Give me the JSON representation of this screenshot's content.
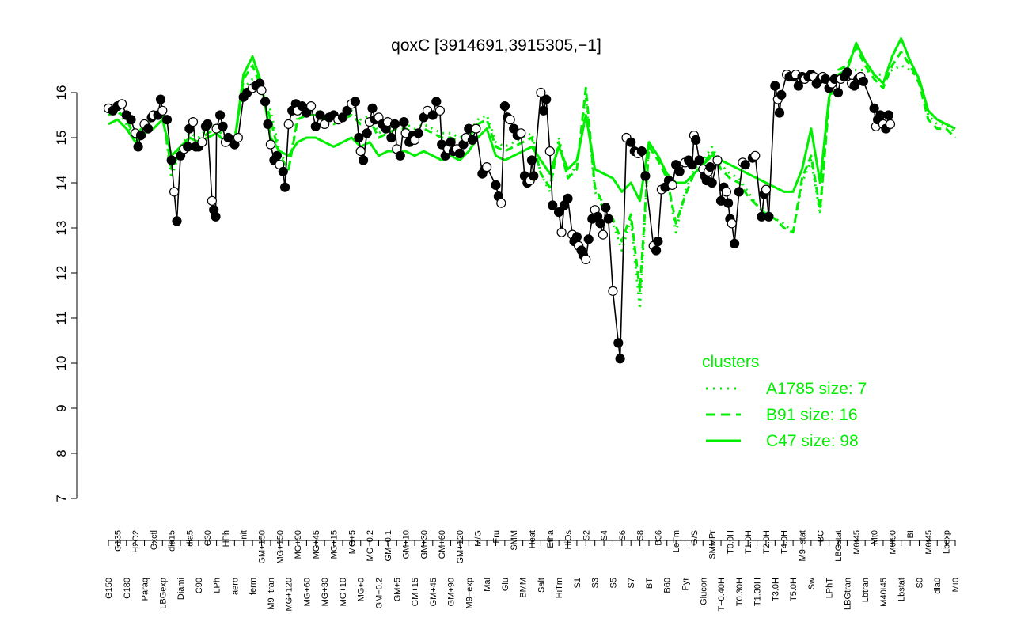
{
  "chart_data": {
    "type": "line",
    "title": "qoxC [3914691,3915305,−1]",
    "xlabel": "",
    "ylabel": "",
    "ylim": [
      7,
      16.5
    ],
    "yticks": [
      7,
      8,
      9,
      10,
      11,
      12,
      13,
      14,
      15,
      16
    ],
    "grid": false,
    "axis_labels_top": [
      "G150",
      "G135",
      "G180",
      "H2O2",
      "Paraq",
      "Oxctl",
      "LBGexp",
      "dia15",
      "Diami",
      "dia5",
      "C90",
      "C30",
      "LPh",
      "HPh",
      "aero",
      "nit",
      "ferm",
      "GM+150",
      "M9−tran",
      "MG+150",
      "MG+120",
      "MG+90",
      "MG+60",
      "MG+45",
      "MG+30",
      "MG+15",
      "MG+10",
      "MG+5",
      "MG+0",
      "MG−0.2",
      "GM−0.2",
      "GM−0.1",
      "GM+5",
      "GM+10",
      "GM+15",
      "GM+30",
      "GM+45",
      "GM+60",
      "GM+90",
      "GM+120",
      "M9−exp",
      "M/G",
      "Mal",
      "Fru",
      "Glu",
      "SMM",
      "BMM",
      "Heat",
      "Salt",
      "Etha",
      "HiTm",
      "HiOs",
      "S1",
      "S2",
      "S3",
      "S4",
      "S5",
      "S6",
      "S7",
      "S8",
      "BT",
      "B36",
      "B60",
      "LoTm",
      "Pyr",
      "G/S",
      "Glucon",
      "SMMPr",
      "T−0.40H",
      "T0.0H",
      "T0.30H",
      "T1.0H",
      "T1.30H",
      "T2.0H",
      "T3.0H",
      "T4.0H",
      "T5.0H",
      "M9−stat",
      "Sw",
      "BC",
      "LPhT",
      "LBGstat",
      "LBGtran",
      "M0t45",
      "Lbtran",
      "Mt0",
      "M40t45",
      "M0t90",
      "Lbstat",
      "BI",
      "S0",
      "M0t45",
      "dia0",
      "Lbexp",
      "Mt0"
    ],
    "series": [
      {
        "name": "A1785 size: 7",
        "style": "dotted",
        "values": [
          15.5,
          15.6,
          15.3,
          15.0,
          15.3,
          15.4,
          15.6,
          14.1,
          14.8,
          15.1,
          15.0,
          15.2,
          15.3,
          15.1,
          15.0,
          16.1,
          16.3,
          16.2,
          15.6,
          14.7,
          14.3,
          15.5,
          15.6,
          15.6,
          15.5,
          15.4,
          15.5,
          15.6,
          15.4,
          15.5,
          15.1,
          15.2,
          15.3,
          15.3,
          15.2,
          15.3,
          15.2,
          15.1,
          15.1,
          15.0,
          15.1,
          15.4,
          15.5,
          14.9,
          14.8,
          14.9,
          15.0,
          15.1,
          14.2,
          13.8,
          15.0,
          14.1,
          14.4,
          15.9,
          13.8,
          13.4,
          13.1,
          12.5,
          13.2,
          11.2,
          14.9,
          14.6,
          14.2,
          12.9,
          13.8,
          14.3,
          14.5,
          14.8,
          14.4,
          14.2,
          14.1,
          13.8,
          13.5,
          13.4,
          13.2,
          13.1,
          12.9,
          14.0,
          14.5,
          13.3,
          15.9,
          16.4,
          16.5,
          16.5,
          16.5,
          16.4,
          16.4,
          16.5,
          16.6,
          16.5,
          16.3,
          15.5,
          15.3,
          15.3,
          15.1
        ]
      },
      {
        "name": "B91 size: 16",
        "style": "dashed",
        "values": [
          15.5,
          15.6,
          15.4,
          15.0,
          15.3,
          15.4,
          15.5,
          14.3,
          14.7,
          15.0,
          14.9,
          15.1,
          15.2,
          15.0,
          14.9,
          16.3,
          16.6,
          16.1,
          15.4,
          14.6,
          14.3,
          15.4,
          15.5,
          15.5,
          15.4,
          15.3,
          15.4,
          15.5,
          15.3,
          15.4,
          15.0,
          15.1,
          15.2,
          15.2,
          15.1,
          15.2,
          15.1,
          15.0,
          15.0,
          14.9,
          15.0,
          15.3,
          15.4,
          14.8,
          14.7,
          14.8,
          14.9,
          15.0,
          14.2,
          13.9,
          14.9,
          14.1,
          14.3,
          16.1,
          13.9,
          13.5,
          13.2,
          12.7,
          13.3,
          11.6,
          14.8,
          14.5,
          14.1,
          13.1,
          13.7,
          14.2,
          14.4,
          14.7,
          14.3,
          14.1,
          14.0,
          13.7,
          13.5,
          13.3,
          13.2,
          13.0,
          12.9,
          14.1,
          14.6,
          13.4,
          15.8,
          16.5,
          16.6,
          17.0,
          16.6,
          16.3,
          16.1,
          16.6,
          16.9,
          16.6,
          16.2,
          15.4,
          15.2,
          15.2,
          15.0
        ]
      },
      {
        "name": "C47 size: 98",
        "style": "solid",
        "values": [
          15.3,
          15.4,
          15.2,
          14.9,
          15.1,
          15.2,
          15.4,
          14.6,
          14.8,
          15.0,
          14.9,
          15.0,
          15.1,
          14.9,
          14.9,
          16.4,
          16.8,
          16.2,
          15.0,
          14.7,
          14.6,
          14.9,
          15.0,
          15.0,
          14.9,
          14.8,
          14.9,
          15.0,
          14.8,
          14.9,
          14.6,
          14.7,
          14.7,
          14.7,
          14.6,
          14.7,
          14.6,
          14.5,
          14.6,
          14.5,
          14.7,
          15.0,
          15.2,
          14.6,
          14.5,
          14.6,
          14.7,
          14.8,
          14.5,
          14.2,
          14.8,
          14.3,
          14.5,
          15.5,
          14.3,
          14.2,
          14.1,
          13.8,
          14.0,
          13.6,
          14.9,
          14.6,
          14.2,
          14.0,
          14.0,
          14.2,
          14.4,
          14.6,
          14.5,
          14.4,
          14.3,
          14.2,
          14.1,
          14.0,
          13.9,
          13.8,
          13.8,
          14.3,
          15.2,
          14.0,
          15.9,
          16.4,
          16.5,
          17.1,
          16.7,
          16.4,
          16.2,
          16.8,
          17.2,
          16.7,
          16.3,
          15.6,
          15.4,
          15.3,
          15.2
        ]
      }
    ],
    "points": [
      {
        "x": 0,
        "y": 15.65
      },
      {
        "x": 0.5,
        "y": 15.6
      },
      {
        "x": 1,
        "y": 15.7
      },
      {
        "x": 1.5,
        "y": 15.75
      },
      {
        "x": 2,
        "y": 15.5
      },
      {
        "x": 2.5,
        "y": 15.4
      },
      {
        "x": 3,
        "y": 15.1
      },
      {
        "x": 3.3,
        "y": 14.8
      },
      {
        "x": 3.6,
        "y": 15.05
      },
      {
        "x": 4,
        "y": 15.3
      },
      {
        "x": 4.4,
        "y": 15.2
      },
      {
        "x": 4.8,
        "y": 15.45
      },
      {
        "x": 5,
        "y": 15.5
      },
      {
        "x": 5.5,
        "y": 15.5
      },
      {
        "x": 5.8,
        "y": 15.85
      },
      {
        "x": 6,
        "y": 15.6
      },
      {
        "x": 6.5,
        "y": 15.4
      },
      {
        "x": 7,
        "y": 14.5
      },
      {
        "x": 7.3,
        "y": 13.8
      },
      {
        "x": 7.6,
        "y": 13.15
      },
      {
        "x": 8,
        "y": 14.6
      },
      {
        "x": 8.4,
        "y": 14.75
      },
      {
        "x": 8.8,
        "y": 14.8
      },
      {
        "x": 9,
        "y": 15.2
      },
      {
        "x": 9.4,
        "y": 15.35
      },
      {
        "x": 9.7,
        "y": 14.8
      },
      {
        "x": 10,
        "y": 14.8
      },
      {
        "x": 10.4,
        "y": 14.9
      },
      {
        "x": 10.8,
        "y": 15.25
      },
      {
        "x": 11,
        "y": 15.3
      },
      {
        "x": 11.5,
        "y": 13.6
      },
      {
        "x": 11.7,
        "y": 13.4
      },
      {
        "x": 11.9,
        "y": 13.25
      },
      {
        "x": 12,
        "y": 15.2
      },
      {
        "x": 12.4,
        "y": 15.5
      },
      {
        "x": 12.7,
        "y": 15.25
      },
      {
        "x": 13,
        "y": 14.9
      },
      {
        "x": 13.3,
        "y": 15.0
      },
      {
        "x": 14,
        "y": 14.85
      },
      {
        "x": 14.4,
        "y": 15.0
      },
      {
        "x": 15,
        "y": 15.9
      },
      {
        "x": 15.4,
        "y": 16.0
      },
      {
        "x": 16,
        "y": 16.1
      },
      {
        "x": 16.4,
        "y": 16.15
      },
      {
        "x": 16.8,
        "y": 16.2
      },
      {
        "x": 17,
        "y": 16.05
      },
      {
        "x": 17.4,
        "y": 15.8
      },
      {
        "x": 17.7,
        "y": 15.3
      },
      {
        "x": 18,
        "y": 14.85
      },
      {
        "x": 18.4,
        "y": 14.5
      },
      {
        "x": 18.7,
        "y": 14.6
      },
      {
        "x": 19,
        "y": 14.4
      },
      {
        "x": 19.4,
        "y": 14.25
      },
      {
        "x": 19.6,
        "y": 13.9
      },
      {
        "x": 20,
        "y": 15.3
      },
      {
        "x": 20.4,
        "y": 15.6
      },
      {
        "x": 20.8,
        "y": 15.75
      },
      {
        "x": 21,
        "y": 15.6
      },
      {
        "x": 21.5,
        "y": 15.7
      },
      {
        "x": 22,
        "y": 15.55
      },
      {
        "x": 22.5,
        "y": 15.7
      },
      {
        "x": 23,
        "y": 15.25
      },
      {
        "x": 23.5,
        "y": 15.5
      },
      {
        "x": 24,
        "y": 15.3
      },
      {
        "x": 24.5,
        "y": 15.45
      },
      {
        "x": 25,
        "y": 15.5
      },
      {
        "x": 25.5,
        "y": 15.4
      },
      {
        "x": 26,
        "y": 15.45
      },
      {
        "x": 26.5,
        "y": 15.6
      },
      {
        "x": 27,
        "y": 15.75
      },
      {
        "x": 27.4,
        "y": 15.8
      },
      {
        "x": 27.8,
        "y": 15.0
      },
      {
        "x": 28,
        "y": 14.7
      },
      {
        "x": 28.3,
        "y": 14.5
      },
      {
        "x": 28.7,
        "y": 15.1
      },
      {
        "x": 29,
        "y": 15.35
      },
      {
        "x": 29.3,
        "y": 15.65
      },
      {
        "x": 29.6,
        "y": 15.4
      },
      {
        "x": 30,
        "y": 15.45
      },
      {
        "x": 30.4,
        "y": 15.3
      },
      {
        "x": 30.8,
        "y": 15.2
      },
      {
        "x": 31,
        "y": 15.35
      },
      {
        "x": 31.4,
        "y": 15.0
      },
      {
        "x": 31.8,
        "y": 15.3
      },
      {
        "x": 32,
        "y": 14.75
      },
      {
        "x": 32.4,
        "y": 14.6
      },
      {
        "x": 32.8,
        "y": 15.35
      },
      {
        "x": 33,
        "y": 15.1
      },
      {
        "x": 33.4,
        "y": 14.9
      },
      {
        "x": 33.8,
        "y": 15.05
      },
      {
        "x": 34,
        "y": 14.95
      },
      {
        "x": 34.4,
        "y": 15.1
      },
      {
        "x": 35,
        "y": 15.45
      },
      {
        "x": 35.4,
        "y": 15.6
      },
      {
        "x": 36,
        "y": 15.5
      },
      {
        "x": 36.4,
        "y": 15.8
      },
      {
        "x": 36.8,
        "y": 15.6
      },
      {
        "x": 37,
        "y": 14.85
      },
      {
        "x": 37.4,
        "y": 14.6
      },
      {
        "x": 37.7,
        "y": 14.75
      },
      {
        "x": 38,
        "y": 14.9
      },
      {
        "x": 38.3,
        "y": 14.7
      },
      {
        "x": 38.7,
        "y": 14.75
      },
      {
        "x": 39,
        "y": 14.65
      },
      {
        "x": 39.4,
        "y": 14.85
      },
      {
        "x": 39.7,
        "y": 15.0
      },
      {
        "x": 40,
        "y": 15.2
      },
      {
        "x": 40.4,
        "y": 14.95
      },
      {
        "x": 40.8,
        "y": 15.2
      },
      {
        "x": 41.5,
        "y": 14.2
      },
      {
        "x": 41.8,
        "y": 14.3
      },
      {
        "x": 42,
        "y": 14.35
      },
      {
        "x": 43,
        "y": 13.95
      },
      {
        "x": 43.3,
        "y": 13.7
      },
      {
        "x": 43.6,
        "y": 13.55
      },
      {
        "x": 44,
        "y": 15.7
      },
      {
        "x": 44.3,
        "y": 15.45
      },
      {
        "x": 44.6,
        "y": 15.4
      },
      {
        "x": 45,
        "y": 15.2
      },
      {
        "x": 45.4,
        "y": 15.05
      },
      {
        "x": 45.8,
        "y": 15.1
      },
      {
        "x": 46.2,
        "y": 14.15
      },
      {
        "x": 46.5,
        "y": 14.0
      },
      {
        "x": 46.8,
        "y": 14.05
      },
      {
        "x": 47,
        "y": 14.5
      },
      {
        "x": 47.2,
        "y": 14.15
      },
      {
        "x": 48,
        "y": 16.0
      },
      {
        "x": 48.3,
        "y": 15.6
      },
      {
        "x": 48.6,
        "y": 15.85
      },
      {
        "x": 49,
        "y": 14.7
      },
      {
        "x": 49.3,
        "y": 13.5
      },
      {
        "x": 50,
        "y": 13.35
      },
      {
        "x": 50.3,
        "y": 12.9
      },
      {
        "x": 50.6,
        "y": 13.5
      },
      {
        "x": 51,
        "y": 13.65
      },
      {
        "x": 51.5,
        "y": 12.85
      },
      {
        "x": 51.7,
        "y": 12.7
      },
      {
        "x": 52,
        "y": 12.8
      },
      {
        "x": 52.2,
        "y": 12.6
      },
      {
        "x": 52.5,
        "y": 12.5
      },
      {
        "x": 52.7,
        "y": 12.4
      },
      {
        "x": 53,
        "y": 12.3
      },
      {
        "x": 53.3,
        "y": 12.75
      },
      {
        "x": 53.7,
        "y": 13.2
      },
      {
        "x": 54,
        "y": 13.4
      },
      {
        "x": 54.3,
        "y": 13.25
      },
      {
        "x": 54.6,
        "y": 13.1
      },
      {
        "x": 54.9,
        "y": 12.85
      },
      {
        "x": 55.2,
        "y": 13.45
      },
      {
        "x": 55.5,
        "y": 13.2
      },
      {
        "x": 56,
        "y": 11.6
      },
      {
        "x": 56.6,
        "y": 10.45
      },
      {
        "x": 56.8,
        "y": 10.1
      },
      {
        "x": 57.5,
        "y": 15.0
      },
      {
        "x": 58,
        "y": 14.9
      },
      {
        "x": 58.4,
        "y": 14.7
      },
      {
        "x": 58.8,
        "y": 14.65
      },
      {
        "x": 59.2,
        "y": 14.7
      },
      {
        "x": 59.6,
        "y": 14.15
      },
      {
        "x": 60.5,
        "y": 12.6
      },
      {
        "x": 60.8,
        "y": 12.5
      },
      {
        "x": 61,
        "y": 12.7
      },
      {
        "x": 61.4,
        "y": 13.85
      },
      {
        "x": 61.8,
        "y": 13.9
      },
      {
        "x": 62.2,
        "y": 14.05
      },
      {
        "x": 62.6,
        "y": 13.95
      },
      {
        "x": 63,
        "y": 14.4
      },
      {
        "x": 63.4,
        "y": 14.25
      },
      {
        "x": 64,
        "y": 14.45
      },
      {
        "x": 64.4,
        "y": 14.5
      },
      {
        "x": 64.8,
        "y": 14.4
      },
      {
        "x": 65,
        "y": 15.05
      },
      {
        "x": 65.2,
        "y": 14.95
      },
      {
        "x": 65.6,
        "y": 14.5
      },
      {
        "x": 66,
        "y": 14.3
      },
      {
        "x": 66.2,
        "y": 14.15
      },
      {
        "x": 66.4,
        "y": 14.05
      },
      {
        "x": 66.6,
        "y": 14.25
      },
      {
        "x": 66.8,
        "y": 14.35
      },
      {
        "x": 67,
        "y": 14.0
      },
      {
        "x": 67.6,
        "y": 14.5
      },
      {
        "x": 68,
        "y": 13.6
      },
      {
        "x": 68.3,
        "y": 13.9
      },
      {
        "x": 68.6,
        "y": 13.8
      },
      {
        "x": 68.8,
        "y": 13.55
      },
      {
        "x": 69,
        "y": 13.2
      },
      {
        "x": 69.2,
        "y": 13.1
      },
      {
        "x": 69.5,
        "y": 12.65
      },
      {
        "x": 70,
        "y": 13.8
      },
      {
        "x": 70.4,
        "y": 14.45
      },
      {
        "x": 70.7,
        "y": 14.4
      },
      {
        "x": 71.5,
        "y": 14.55
      },
      {
        "x": 71.8,
        "y": 14.6
      },
      {
        "x": 72.5,
        "y": 13.25
      },
      {
        "x": 72.8,
        "y": 13.75
      },
      {
        "x": 73,
        "y": 13.85
      },
      {
        "x": 73.3,
        "y": 13.25
      },
      {
        "x": 74,
        "y": 16.15
      },
      {
        "x": 74.3,
        "y": 15.85
      },
      {
        "x": 74.5,
        "y": 15.55
      },
      {
        "x": 74.7,
        "y": 15.95
      },
      {
        "x": 75.3,
        "y": 16.4
      },
      {
        "x": 75.6,
        "y": 16.35
      },
      {
        "x": 76,
        "y": 16.35
      },
      {
        "x": 76.3,
        "y": 16.4
      },
      {
        "x": 76.6,
        "y": 16.15
      },
      {
        "x": 77,
        "y": 16.35
      },
      {
        "x": 77.3,
        "y": 16.3
      },
      {
        "x": 77.7,
        "y": 16.35
      },
      {
        "x": 78,
        "y": 16.4
      },
      {
        "x": 78.3,
        "y": 16.35
      },
      {
        "x": 78.6,
        "y": 16.2
      },
      {
        "x": 79,
        "y": 16.3
      },
      {
        "x": 79.3,
        "y": 16.35
      },
      {
        "x": 79.6,
        "y": 16.3
      },
      {
        "x": 80,
        "y": 16.1
      },
      {
        "x": 80.3,
        "y": 16.2
      },
      {
        "x": 80.6,
        "y": 16.3
      },
      {
        "x": 81,
        "y": 16.0
      },
      {
        "x": 81.3,
        "y": 16.3
      },
      {
        "x": 81.7,
        "y": 16.35
      },
      {
        "x": 82,
        "y": 16.45
      },
      {
        "x": 82.5,
        "y": 16.2
      },
      {
        "x": 82.8,
        "y": 16.15
      },
      {
        "x": 83.2,
        "y": 16.3
      },
      {
        "x": 83.5,
        "y": 16.35
      },
      {
        "x": 83.8,
        "y": 16.25
      },
      {
        "x": 85,
        "y": 15.65
      },
      {
        "x": 85.2,
        "y": 15.25
      },
      {
        "x": 85.4,
        "y": 15.4
      },
      {
        "x": 85.7,
        "y": 15.5
      },
      {
        "x": 86,
        "y": 15.3
      },
      {
        "x": 86.3,
        "y": 15.2
      },
      {
        "x": 86.6,
        "y": 15.5
      },
      {
        "x": 86.8,
        "y": 15.3
      }
    ],
    "legend": {
      "title": "clusters",
      "placement": "bottom-right",
      "entries": [
        {
          "label": "A1785 size: 7",
          "style": "dotted"
        },
        {
          "label": "B91 size: 16",
          "style": "dashed"
        },
        {
          "label": "C47 size: 98",
          "style": "solid"
        }
      ]
    },
    "colors": {
      "lines": "#00ee00",
      "points": "#000000",
      "axis": "#000000"
    }
  }
}
